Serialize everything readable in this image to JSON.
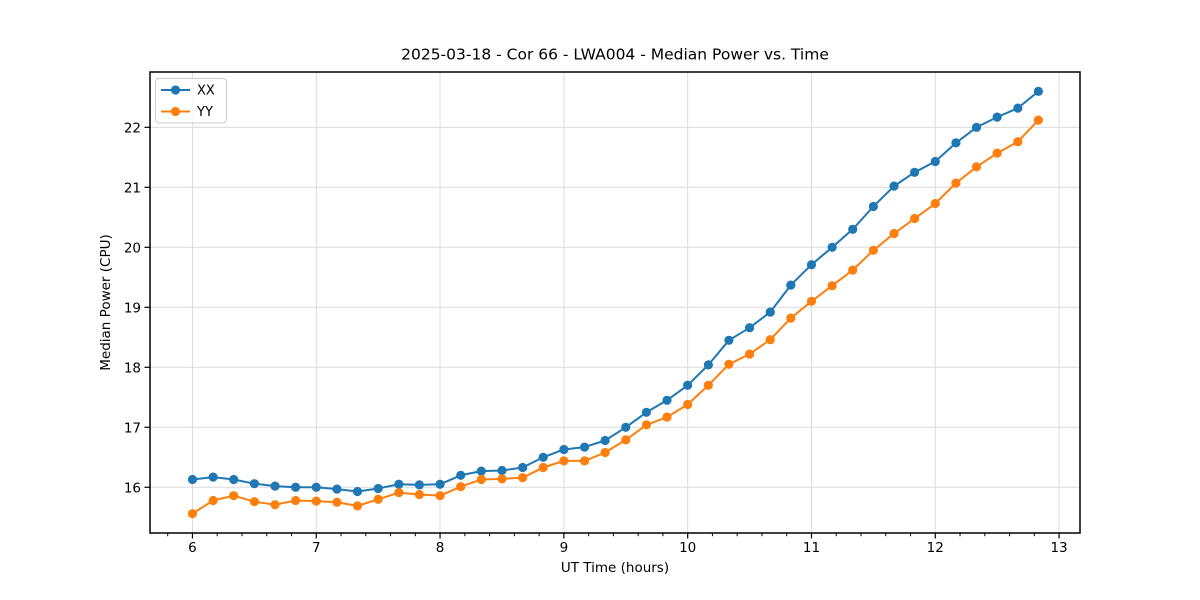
{
  "figure": {
    "title": "2025-03-18 - Cor 66 - LWA004 - Median Power vs. Time",
    "xlabel": "UT Time (hours)",
    "ylabel": "Median Power (CPU)"
  },
  "legend": {
    "items": [
      {
        "label": "XX",
        "color": "#1f77b4"
      },
      {
        "label": "YY",
        "color": "#ff7f0e"
      }
    ]
  },
  "chart_data": {
    "type": "line",
    "title": "2025-03-18 - Cor 66 - LWA004 - Median Power vs. Time",
    "xlabel": "UT Time (hours)",
    "ylabel": "Median Power (CPU)",
    "marker": "o",
    "grid": true,
    "legend_position": "upper left",
    "xlim": [
      5.657,
      13.169
    ],
    "ylim": [
      15.238,
      22.922
    ],
    "xticks": [
      6,
      7,
      8,
      9,
      10,
      11,
      12,
      13
    ],
    "yticks": [
      16,
      17,
      18,
      19,
      20,
      21,
      22
    ],
    "minor_xtick_step": 0.2,
    "x": [
      6.0,
      6.167,
      6.333,
      6.5,
      6.667,
      6.833,
      7.0,
      7.167,
      7.333,
      7.5,
      7.667,
      7.833,
      8.0,
      8.167,
      8.333,
      8.5,
      8.667,
      8.833,
      9.0,
      9.167,
      9.333,
      9.5,
      9.667,
      9.833,
      10.0,
      10.167,
      10.333,
      10.5,
      10.667,
      10.833,
      11.0,
      11.167,
      11.333,
      11.5,
      11.667,
      11.833,
      12.0,
      12.167,
      12.333,
      12.5,
      12.667,
      12.833
    ],
    "series": [
      {
        "name": "XX",
        "color": "#1f77b4",
        "values": [
          16.13,
          16.17,
          16.13,
          16.06,
          16.02,
          16.0,
          16.0,
          15.97,
          15.93,
          15.98,
          16.05,
          16.04,
          16.05,
          16.2,
          16.27,
          16.28,
          16.33,
          16.5,
          16.63,
          16.67,
          16.78,
          17.0,
          17.25,
          17.45,
          17.7,
          18.04,
          18.45,
          18.66,
          18.92,
          19.37,
          19.71,
          20.0,
          20.3,
          20.68,
          21.02,
          21.25,
          21.43,
          21.74,
          22.0,
          22.17,
          22.32,
          22.6
        ]
      },
      {
        "name": "YY",
        "color": "#ff7f0e",
        "values": [
          15.56,
          15.78,
          15.86,
          15.76,
          15.71,
          15.78,
          15.77,
          15.75,
          15.69,
          15.8,
          15.91,
          15.88,
          15.86,
          16.01,
          16.13,
          16.14,
          16.16,
          16.33,
          16.44,
          16.44,
          16.58,
          16.79,
          17.04,
          17.17,
          17.38,
          17.7,
          18.05,
          18.22,
          18.46,
          18.82,
          19.1,
          19.36,
          19.62,
          19.95,
          20.23,
          20.48,
          20.73,
          21.07,
          21.34,
          21.57,
          21.76,
          22.12
        ]
      }
    ]
  }
}
